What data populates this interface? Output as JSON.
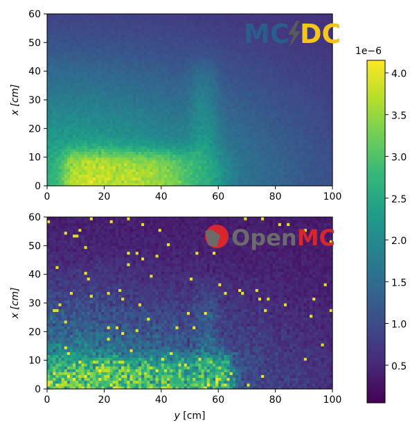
{
  "colors": {
    "viridis": [
      "#440154",
      "#482878",
      "#3e4989",
      "#31688e",
      "#26828e",
      "#1f9e89",
      "#35b779",
      "#6ece58",
      "#b5de2b",
      "#fde725"
    ],
    "mcdc_blue": "#2a5d8a",
    "mcdc_yellow": "#f5c518",
    "openmc_red": "#d8262e",
    "openmc_grey": "#6b6b6b"
  },
  "colorbar": {
    "exponent_label": "1e−6",
    "ticks": [
      "0.5",
      "1.0",
      "1.5",
      "2.0",
      "2.5",
      "3.0",
      "3.5",
      "4.0"
    ],
    "tick_values": [
      0.5,
      1.0,
      1.5,
      2.0,
      2.5,
      3.0,
      3.5,
      4.0
    ],
    "min": 0.05,
    "max": 4.15
  },
  "logos": {
    "mcdc": {
      "left": "MC",
      "right": "DC"
    },
    "openmc": {
      "open": "Open",
      "mc": "MC"
    }
  },
  "chart_data": [
    {
      "type": "heatmap",
      "name": "MC/DC",
      "xlabel": "",
      "ylabel": "x [cm]",
      "xlim": [
        0,
        100
      ],
      "ylim": [
        0,
        60
      ],
      "xticks": [
        "0",
        "20",
        "40",
        "60",
        "80",
        "100"
      ],
      "yticks": [
        "0",
        "10",
        "20",
        "30",
        "40",
        "50",
        "60"
      ],
      "grid": [
        100,
        60
      ],
      "noise": 0.06,
      "description_regions": [
        {
          "region": "source slab y 5-50, x 0-12",
          "value": 3.9
        },
        {
          "region": "channel y 50-62, x 0-60",
          "value": 2.5
        },
        {
          "region": "background near source",
          "value": 2.5
        },
        {
          "region": "far corner y 100, x 60",
          "value": 0.5
        }
      ]
    },
    {
      "type": "heatmap",
      "name": "OpenMC",
      "xlabel": "y [cm]",
      "ylabel": "x [cm]",
      "xlim": [
        0,
        100
      ],
      "ylim": [
        0,
        60
      ],
      "xticks": [
        "0",
        "20",
        "40",
        "60",
        "80",
        "100"
      ],
      "yticks": [
        "0",
        "10",
        "20",
        "30",
        "40",
        "50",
        "60"
      ],
      "grid": [
        100,
        60
      ],
      "noise": 0.3,
      "description_regions": [
        {
          "region": "source slab y 0-62, x 0-12",
          "value": 3.5
        },
        {
          "region": "hot spot y 60-64, x 0-10",
          "value": 4.1
        },
        {
          "region": "background",
          "value": 1.2
        },
        {
          "region": "far corner y 100, x 60",
          "value": 0.3
        }
      ]
    }
  ]
}
